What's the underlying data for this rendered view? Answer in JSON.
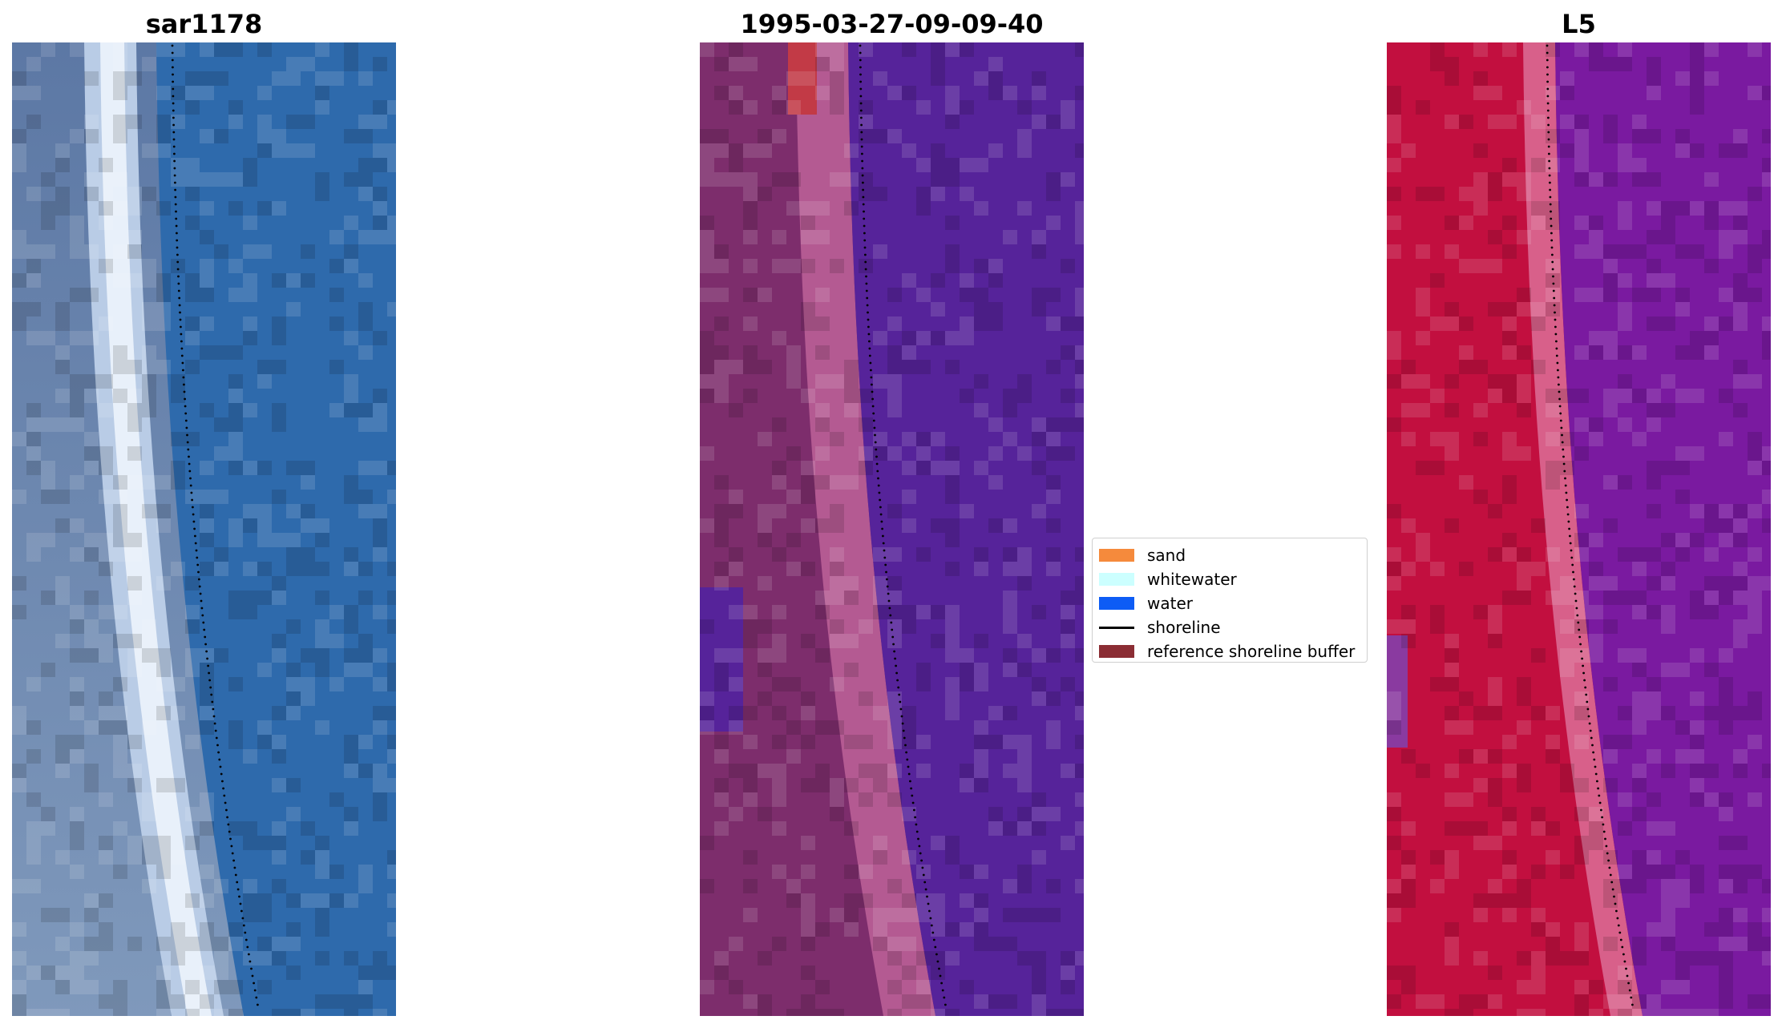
{
  "panels": [
    {
      "title": "sar1178",
      "kind": "rgb"
    },
    {
      "title": "1995-03-27-09-09-40",
      "kind": "classified"
    },
    {
      "title": "L5",
      "kind": "index"
    }
  ],
  "legend": {
    "items": [
      {
        "label": "sand",
        "color": "#f58a3c",
        "type": "patch"
      },
      {
        "label": "whitewater",
        "color": "#ccffff",
        "type": "patch"
      },
      {
        "label": "water",
        "color": "#0d5cf5",
        "type": "patch"
      },
      {
        "label": "shoreline",
        "color": "#000000",
        "type": "line"
      },
      {
        "label": "reference shoreline buffer",
        "color": "#8b2d34",
        "type": "patch"
      }
    ]
  },
  "colors": {
    "rgb_water": "#2e6aac",
    "rgb_land": "#5a7aa8",
    "rgb_surf": "#e8f0fa",
    "class_land": "#7d2d6c",
    "class_band": "#b45a92",
    "class_water": "#56239a",
    "class_sand": "#c23a46",
    "index_land": "#c20f3f",
    "index_band": "#d8608a",
    "index_water": "#7a1aa0",
    "shoreline": "#000000"
  }
}
